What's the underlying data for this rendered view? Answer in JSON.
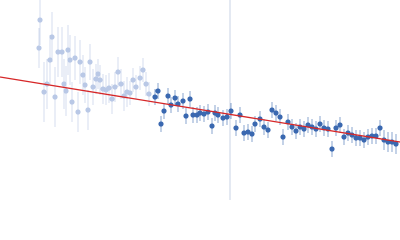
{
  "chart_data": {
    "type": "scatter",
    "xlim": [
      0,
      400
    ],
    "ylim": [
      0,
      200
    ],
    "series": [
      {
        "color": "#b9c8e6",
        "x": [
          40,
          39,
          44,
          47,
          50,
          52,
          55,
          58,
          62,
          64,
          66,
          68,
          70,
          72,
          75,
          78,
          80,
          83,
          85,
          88,
          90,
          93,
          96,
          98,
          100,
          103,
          106,
          109,
          112,
          115,
          118,
          121,
          124,
          127,
          130,
          133,
          136,
          140,
          143,
          146,
          149
        ],
        "values": [
          180,
          152,
          108,
          116,
          140,
          163,
          103,
          148,
          148,
          116,
          109,
          150,
          140,
          98,
          142,
          88,
          138,
          125,
          115,
          90,
          138,
          113,
          121,
          126,
          120,
          111,
          110,
          112,
          101,
          113,
          128,
          116,
          104,
          108,
          107,
          120,
          113,
          122,
          130,
          116,
          106
        ],
        "errors": [
          25,
          20,
          30,
          25,
          25,
          25,
          30,
          25,
          25,
          25,
          25,
          25,
          25,
          20,
          22,
          20,
          22,
          20,
          18,
          20,
          18,
          18,
          15,
          15,
          15,
          15,
          15,
          15,
          15,
          15,
          15,
          15,
          15,
          15,
          12,
          12,
          12,
          12,
          12,
          12,
          12
        ]
      },
      {
        "color": "#3a68b0",
        "x": [
          155,
          158,
          161,
          164,
          168,
          171,
          175,
          178,
          183,
          186,
          190,
          193,
          197,
          200,
          204,
          208,
          212,
          215,
          218,
          223,
          227,
          231,
          236,
          240,
          244,
          248,
          252,
          255,
          260,
          264,
          268,
          272,
          276,
          280,
          283,
          288,
          292,
          296,
          300,
          304,
          308,
          312,
          316,
          320,
          324,
          328,
          332,
          336,
          340,
          344,
          348,
          352,
          356,
          360,
          364,
          368,
          372,
          376,
          380,
          384,
          388,
          392,
          396
        ],
        "values": [
          103,
          109,
          76,
          89,
          104,
          95,
          102,
          96,
          99,
          84,
          101,
          85,
          85,
          87,
          86,
          88,
          74,
          87,
          85,
          82,
          83,
          89,
          72,
          85,
          67,
          68,
          66,
          76,
          81,
          73,
          70,
          90,
          87,
          83,
          63,
          78,
          73,
          69,
          73,
          71,
          75,
          73,
          71,
          76,
          72,
          71,
          51,
          72,
          75,
          63,
          67,
          65,
          62,
          62,
          60,
          63,
          64,
          64,
          72,
          60,
          58,
          58,
          56
        ],
        "errors": [
          8,
          8,
          8,
          8,
          8,
          8,
          8,
          8,
          8,
          8,
          8,
          8,
          8,
          8,
          8,
          8,
          8,
          8,
          8,
          8,
          8,
          8,
          8,
          8,
          8,
          8,
          8,
          8,
          8,
          8,
          8,
          8,
          8,
          8,
          8,
          8,
          8,
          8,
          8,
          8,
          8,
          8,
          8,
          8,
          8,
          8,
          8,
          8,
          8,
          8,
          8,
          8,
          8,
          8,
          8,
          8,
          8,
          8,
          8,
          10,
          10,
          10,
          10
        ]
      }
    ],
    "fit_line": {
      "x": [
        0,
        400
      ],
      "values": [
        123,
        58
      ],
      "color": "#d62728"
    },
    "vline": {
      "x": 230,
      "color": "#c9d3e6"
    }
  }
}
